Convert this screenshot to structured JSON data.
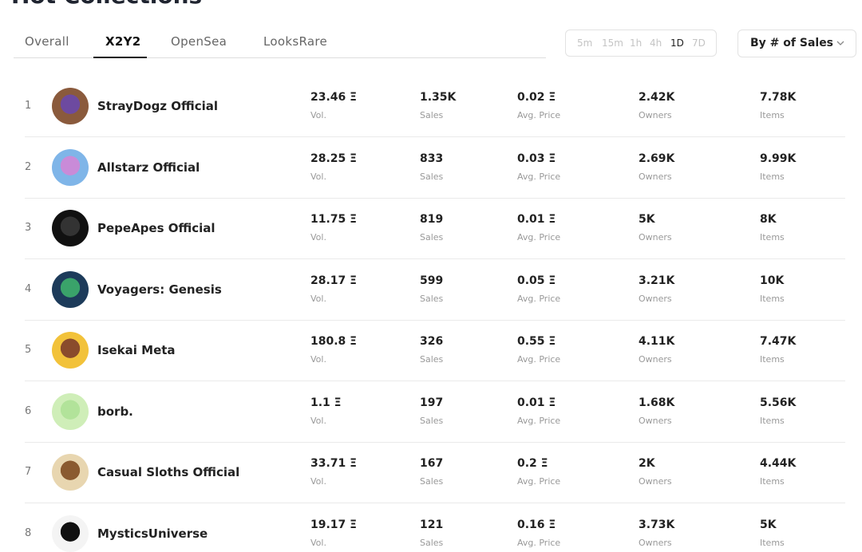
{
  "header": {
    "title": "Hot Collections"
  },
  "tabs": {
    "items": [
      "Overall",
      "X2Y2",
      "OpenSea",
      "LooksRare"
    ],
    "active": 1
  },
  "time_filters": {
    "items": [
      "5m",
      "15m",
      "1h",
      "4h",
      "1D",
      "7D"
    ],
    "active": 4
  },
  "sort": {
    "label": "By # of Sales"
  },
  "table": {
    "columns": [
      "Vol.",
      "Sales",
      "Avg. Price",
      "Owners",
      "Items"
    ],
    "rows": [
      [
        "1",
        "StrayDogz Official",
        "23.46 Ξ",
        "1.35K",
        "0.02 Ξ",
        "2.42K",
        "7.78K"
      ],
      [
        "2",
        "Allstarz Official",
        "28.25 Ξ",
        "833",
        "0.03 Ξ",
        "2.69K",
        "9.99K"
      ],
      [
        "3",
        "PepeApes Official",
        "11.75 Ξ",
        "819",
        "0.01 Ξ",
        "5K",
        "8K"
      ],
      [
        "4",
        "Voyagers: Genesis",
        "28.17 Ξ",
        "599",
        "0.05 Ξ",
        "3.21K",
        "10K"
      ],
      [
        "5",
        "Isekai Meta",
        "180.8 Ξ",
        "326",
        "0.55 Ξ",
        "4.11K",
        "7.47K"
      ],
      [
        "6",
        "borb.",
        "1.1 Ξ",
        "197",
        "0.01 Ξ",
        "1.68K",
        "5.56K"
      ],
      [
        "7",
        "Casual Sloths Official",
        "33.71 Ξ",
        "167",
        "0.2 Ξ",
        "2K",
        "4.44K"
      ],
      [
        "8",
        "MysticsUniverse",
        "19.17 Ξ",
        "121",
        "0.16 Ξ",
        "3.73K",
        "5K"
      ]
    ]
  }
}
